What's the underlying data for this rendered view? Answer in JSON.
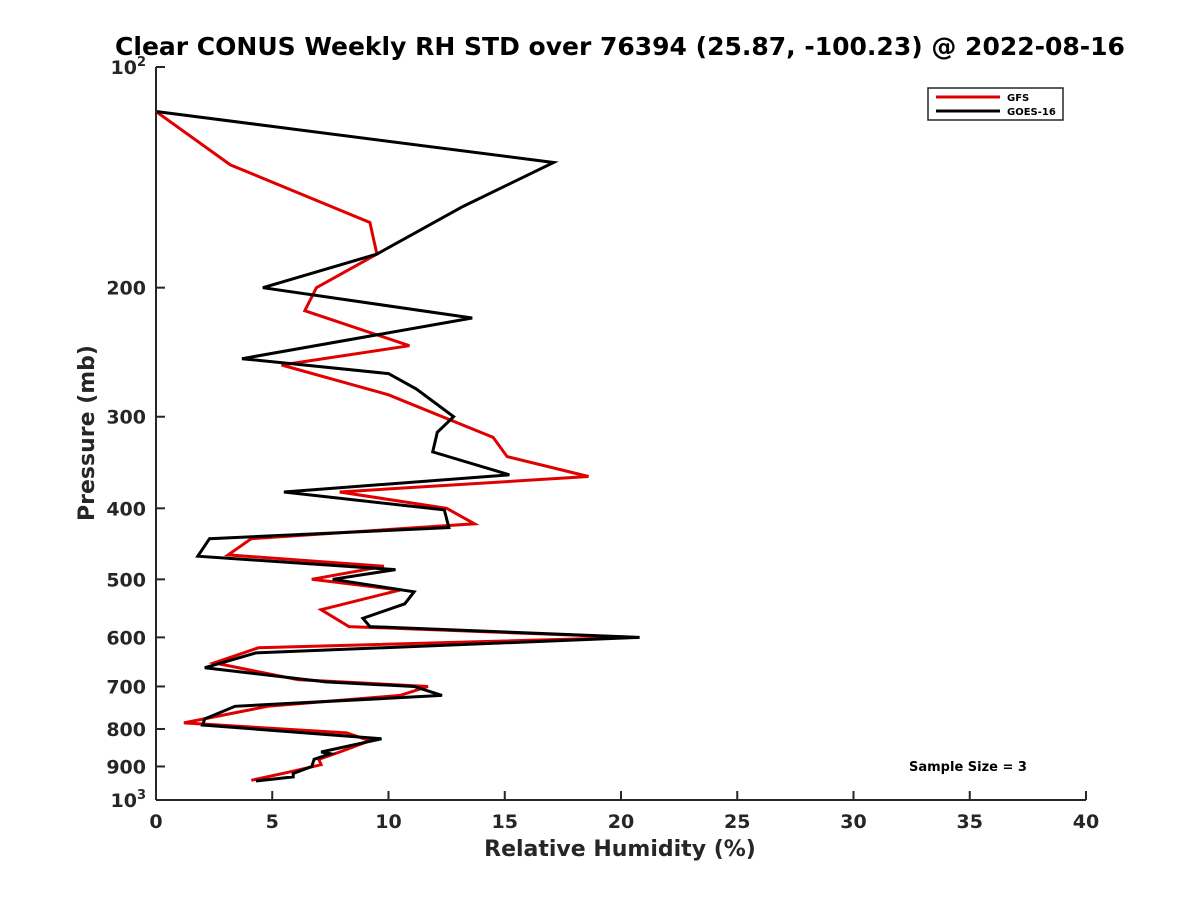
{
  "chart_data": {
    "type": "line",
    "title": "Clear CONUS Weekly RH STD over 76394 (25.87, -100.23) @ 2022-08-16",
    "xlabel": "Relative Humidity (%)",
    "ylabel": "Pressure (mb)",
    "xlim": [
      0,
      40
    ],
    "ylim": [
      100,
      1000
    ],
    "yscale": "log",
    "yreversed": true,
    "x_ticks": [
      {
        "value": 0,
        "label": "0"
      },
      {
        "value": 5,
        "label": "5"
      },
      {
        "value": 10,
        "label": "10"
      },
      {
        "value": 15,
        "label": "15"
      },
      {
        "value": 20,
        "label": "20"
      },
      {
        "value": 25,
        "label": "25"
      },
      {
        "value": 30,
        "label": "30"
      },
      {
        "value": 35,
        "label": "35"
      },
      {
        "value": 40,
        "label": "40"
      }
    ],
    "y_ticks": [
      {
        "value": 100,
        "label": "10",
        "sup": "2"
      },
      {
        "value": 200,
        "label": "200"
      },
      {
        "value": 300,
        "label": "300"
      },
      {
        "value": 400,
        "label": "400"
      },
      {
        "value": 500,
        "label": "500"
      },
      {
        "value": 600,
        "label": "600"
      },
      {
        "value": 700,
        "label": "700"
      },
      {
        "value": 800,
        "label": "800"
      },
      {
        "value": 900,
        "label": "900"
      },
      {
        "value": 1000,
        "label": "10",
        "sup": "3"
      }
    ],
    "grid": false,
    "legend_position": "top-right",
    "annotation": "Sample Size = 3",
    "series": [
      {
        "name": "GFS",
        "color": "#e00000",
        "points": [
          [
            0.0,
            115
          ],
          [
            3.2,
            136
          ],
          [
            9.2,
            163
          ],
          [
            9.5,
            180
          ],
          [
            6.9,
            200
          ],
          [
            6.4,
            215
          ],
          [
            10.9,
            240
          ],
          [
            5.4,
            255
          ],
          [
            10.0,
            280
          ],
          [
            14.5,
            320
          ],
          [
            15.1,
            340
          ],
          [
            18.6,
            362
          ],
          [
            7.9,
            380
          ],
          [
            12.5,
            400
          ],
          [
            13.7,
            420
          ],
          [
            4.1,
            440
          ],
          [
            3.1,
            463
          ],
          [
            9.8,
            480
          ],
          [
            6.7,
            500
          ],
          [
            10.5,
            517
          ],
          [
            7.1,
            550
          ],
          [
            8.3,
            580
          ],
          [
            20.6,
            600
          ],
          [
            4.4,
            620
          ],
          [
            2.5,
            650
          ],
          [
            6.1,
            685
          ],
          [
            11.7,
            700
          ],
          [
            10.5,
            720
          ],
          [
            4.8,
            745
          ],
          [
            1.2,
            785
          ],
          [
            8.2,
            810
          ],
          [
            9.2,
            830
          ],
          [
            7.9,
            860
          ],
          [
            7.0,
            880
          ],
          [
            7.1,
            895
          ],
          [
            5.8,
            915
          ],
          [
            4.1,
            940
          ]
        ]
      },
      {
        "name": "GOES-16",
        "color": "#000000",
        "points": [
          [
            0.0,
            115
          ],
          [
            17.1,
            135
          ],
          [
            13.2,
            155
          ],
          [
            9.5,
            180
          ],
          [
            4.6,
            200
          ],
          [
            13.6,
            220
          ],
          [
            3.7,
            250
          ],
          [
            10.0,
            262
          ],
          [
            11.2,
            275
          ],
          [
            12.8,
            300
          ],
          [
            12.1,
            315
          ],
          [
            11.9,
            335
          ],
          [
            15.2,
            360
          ],
          [
            5.5,
            380
          ],
          [
            12.4,
            402
          ],
          [
            12.6,
            425
          ],
          [
            2.3,
            440
          ],
          [
            1.8,
            465
          ],
          [
            10.3,
            485
          ],
          [
            7.6,
            500
          ],
          [
            11.1,
            520
          ],
          [
            10.7,
            540
          ],
          [
            8.9,
            565
          ],
          [
            9.2,
            580
          ],
          [
            20.8,
            600
          ],
          [
            4.3,
            630
          ],
          [
            2.1,
            660
          ],
          [
            7.3,
            690
          ],
          [
            11.1,
            700
          ],
          [
            12.3,
            720
          ],
          [
            3.4,
            745
          ],
          [
            2.1,
            775
          ],
          [
            2.0,
            790
          ],
          [
            9.7,
            825
          ],
          [
            7.1,
            860
          ],
          [
            7.5,
            865
          ],
          [
            6.8,
            880
          ],
          [
            6.7,
            900
          ],
          [
            5.9,
            920
          ],
          [
            5.9,
            930
          ],
          [
            4.3,
            942
          ]
        ]
      }
    ]
  }
}
